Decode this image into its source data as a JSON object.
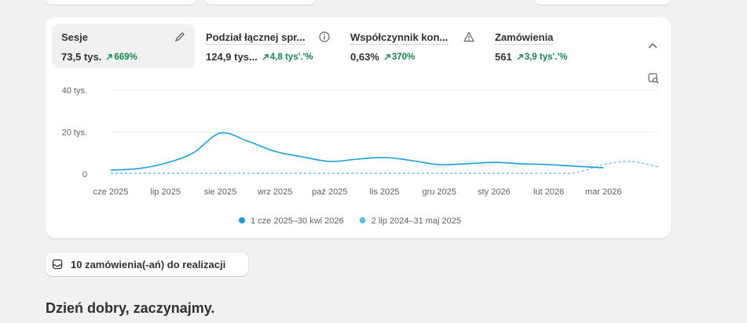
{
  "metrics": [
    {
      "label": "Sesje",
      "value": "73,5 tys.",
      "change": "669%"
    },
    {
      "label": "Podział łącznej spr...",
      "value": "124,9 tys...",
      "change": "4,8 tys'.'%"
    },
    {
      "label": "Współczynnik kon...",
      "value": "0,63%",
      "change": "370%"
    },
    {
      "label": "Zamówienia",
      "value": "561",
      "change": "3,9 tys'.'%"
    }
  ],
  "chart": {
    "type": "line",
    "xlim": [
      0,
      10
    ],
    "xticks": [
      {
        "value": 0,
        "label": "cze 2025"
      },
      {
        "value": 1,
        "label": "lip 2025"
      },
      {
        "value": 2,
        "label": "sie 2025"
      },
      {
        "value": 3,
        "label": "wrz 2025"
      },
      {
        "value": 4,
        "label": "paź 2025"
      },
      {
        "value": 5,
        "label": "lis 2025"
      },
      {
        "value": 6,
        "label": "gru 2025"
      },
      {
        "value": 7,
        "label": "sty 2026"
      },
      {
        "value": 8,
        "label": "lut 2026"
      },
      {
        "value": 9,
        "label": "mar 2026"
      }
    ],
    "ylim": [
      0,
      40000
    ],
    "yticks": [
      0,
      {
        "value": 20000,
        "label": "20 tys."
      },
      {
        "value": 40000,
        "label": "40 tys."
      }
    ],
    "grid": true,
    "series": [
      {
        "name": "1 cze 2025–30 kwi 2026",
        "color": "#1a9fe0",
        "dashed": false,
        "x": [
          0,
          0.5,
          1,
          1.5,
          2,
          2.5,
          3,
          3.5,
          4,
          4.5,
          5,
          5.5,
          6,
          6.5,
          7,
          7.5,
          8,
          8.5,
          9
        ],
        "values": [
          1900,
          2600,
          5200,
          10000,
          19500,
          15700,
          10800,
          8200,
          6000,
          7100,
          7900,
          6400,
          4500,
          4900,
          5600,
          4900,
          4500,
          3700,
          3000
        ]
      },
      {
        "name": "2 lip 2024–31 maj 2025",
        "color": "#5cc0ea",
        "dashed": true,
        "x": [
          0,
          1,
          2,
          3,
          4,
          5,
          6,
          7,
          8,
          8.5,
          9,
          9.5,
          10
        ],
        "values": [
          400,
          400,
          400,
          400,
          400,
          400,
          400,
          400,
          400,
          700,
          4500,
          6000,
          3400
        ]
      }
    ]
  },
  "orders_button": "10 zamówienia(-ań) do realizacji",
  "greeting": "Dzień dobry, zaczynajmy."
}
